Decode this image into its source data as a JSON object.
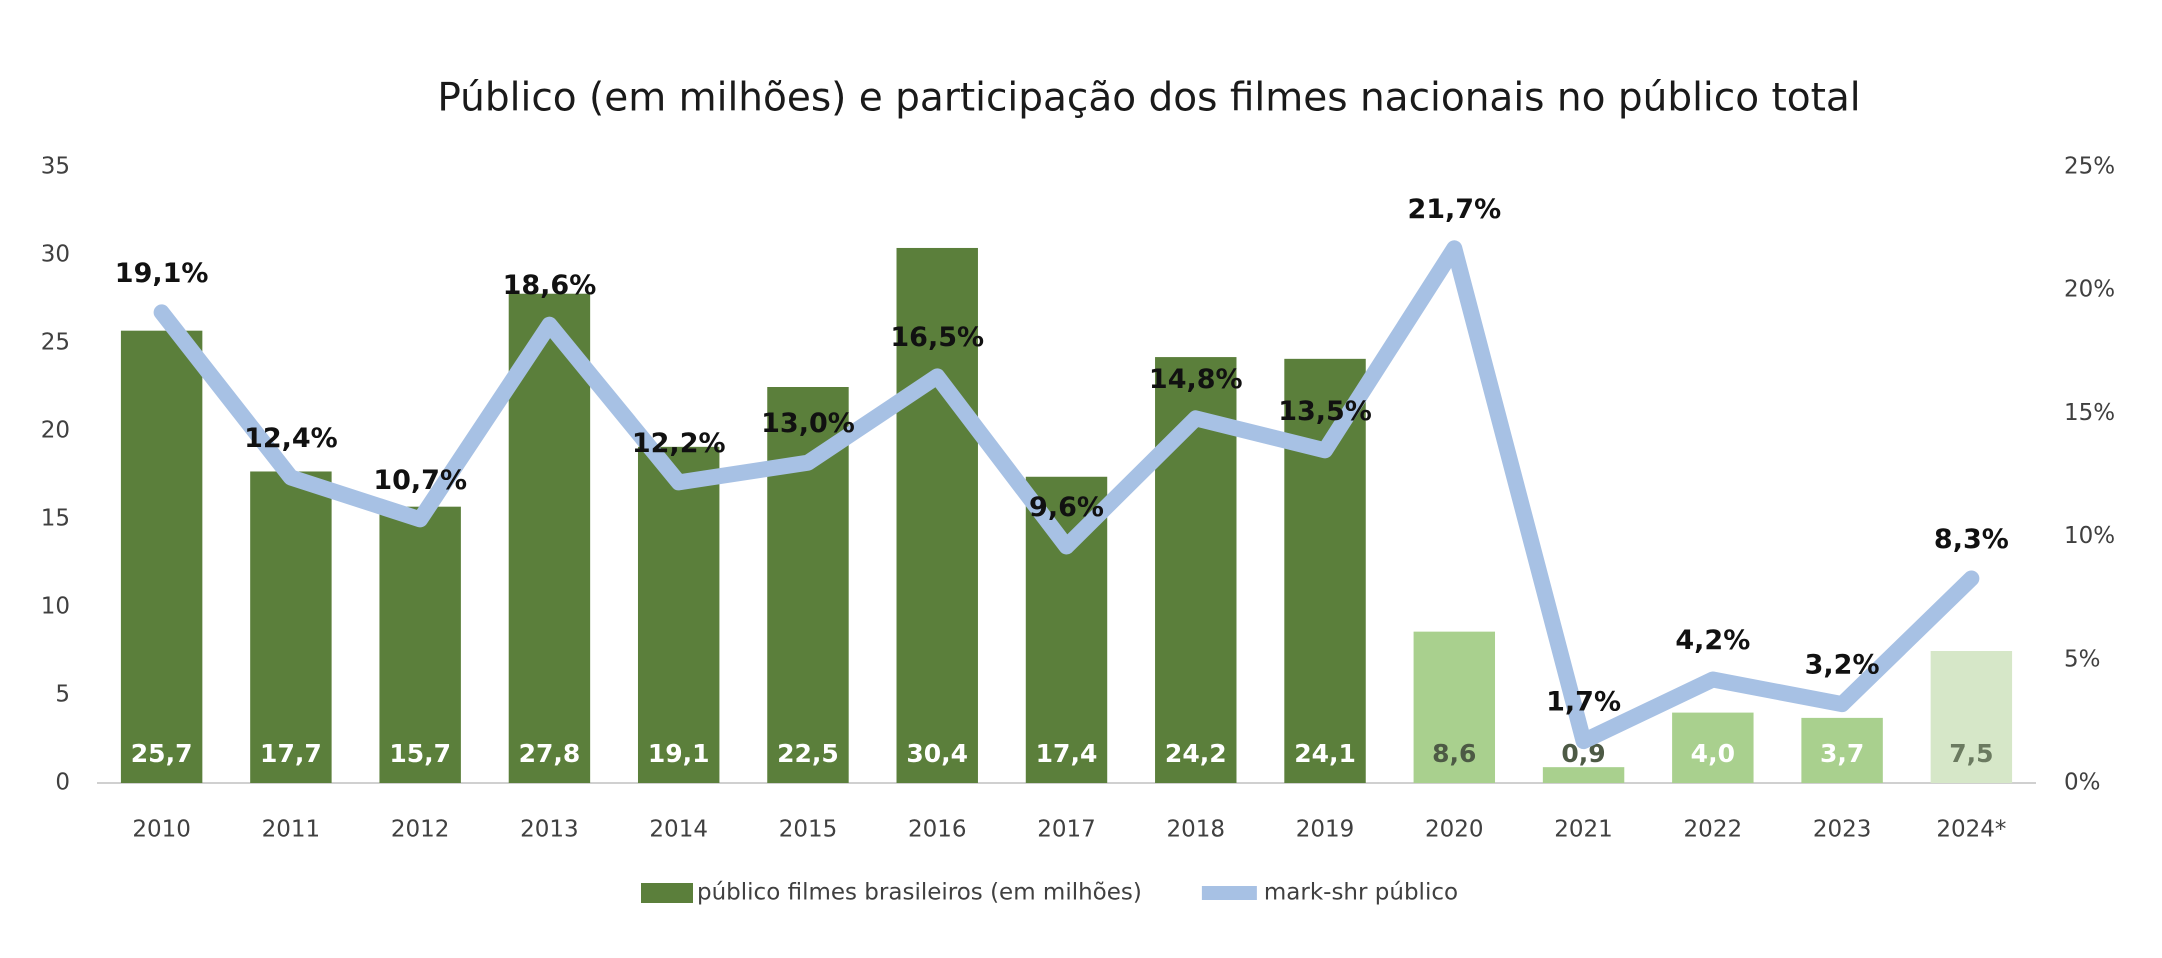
{
  "chart_data": {
    "type": "bar",
    "title": "Público (em milhões) e participação dos filmes nacionais no público total",
    "categories": [
      "2010",
      "2011",
      "2012",
      "2013",
      "2014",
      "2015",
      "2016",
      "2017",
      "2018",
      "2019",
      "2020",
      "2021",
      "2022",
      "2023",
      "2024*"
    ],
    "series": [
      {
        "name": "público filmes brasileiros (em milhões)",
        "type": "bar",
        "color": "#5b7f3b",
        "colors": [
          "#5b7f3b",
          "#5b7f3b",
          "#5b7f3b",
          "#5b7f3b",
          "#5b7f3b",
          "#5b7f3b",
          "#5b7f3b",
          "#5b7f3b",
          "#5b7f3b",
          "#5b7f3b",
          "#a9d08e",
          "#a9d08e",
          "#a9d08e",
          "#a9d08e",
          "#d6e7c8"
        ],
        "label_colors": [
          "#ffffff",
          "#ffffff",
          "#ffffff",
          "#ffffff",
          "#ffffff",
          "#ffffff",
          "#ffffff",
          "#ffffff",
          "#ffffff",
          "#ffffff",
          "#4d5a45",
          "#4d5a45",
          "#ffffff",
          "#ffffff",
          "#6b7a60"
        ],
        "values": [
          25.7,
          17.7,
          15.7,
          27.8,
          19.1,
          22.5,
          30.4,
          17.4,
          24.2,
          24.1,
          8.6,
          0.9,
          4.0,
          3.7,
          7.5
        ],
        "value_labels": [
          "25,7",
          "17,7",
          "15,7",
          "27,8",
          "19,1",
          "22,5",
          "30,4",
          "17,4",
          "24,2",
          "24,1",
          "8,6",
          "0,9",
          "4,0",
          "3,7",
          "7,5"
        ]
      },
      {
        "name": "mark-shr público",
        "type": "line",
        "color": "#a7c1e4",
        "axis": "y2",
        "values": [
          19.1,
          12.4,
          10.7,
          18.6,
          12.2,
          13.0,
          16.5,
          9.6,
          14.8,
          13.5,
          21.7,
          1.7,
          4.2,
          3.2,
          8.3
        ],
        "value_labels": [
          "19,1%",
          "12,4%",
          "10,7%",
          "18,6%",
          "12,2%",
          "13,0%",
          "16,5%",
          "9,6%",
          "14,8%",
          "13,5%",
          "21,7%",
          "1,7%",
          "4,2%",
          "3,2%",
          "8,3%"
        ]
      }
    ],
    "ylim": [
      0,
      35
    ],
    "yticks": [
      0,
      5,
      10,
      15,
      20,
      25,
      30,
      35
    ],
    "y2lim": [
      0,
      25
    ],
    "y2ticks": [
      {
        "value": 0,
        "label": "0%"
      },
      {
        "value": 5,
        "label": "5%"
      },
      {
        "value": 10,
        "label": "10%"
      },
      {
        "value": 15,
        "label": "15%"
      },
      {
        "value": 20,
        "label": "20%"
      },
      {
        "value": 25,
        "label": "25%"
      }
    ],
    "legend": "bottom"
  }
}
